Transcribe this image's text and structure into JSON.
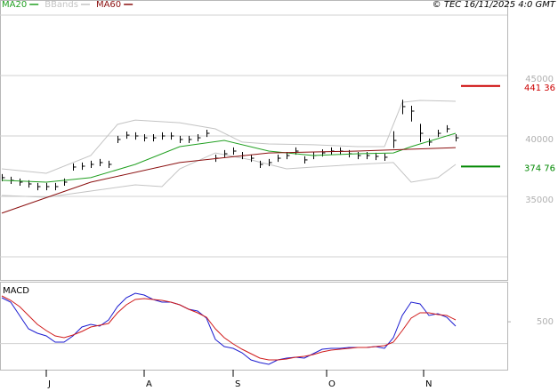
{
  "chart_data": [
    {
      "type": "ohlc",
      "source": "© TEC 16/11/2025 4:0 GMT",
      "xlim": [
        -0.2,
        56.8
      ],
      "xticks": [
        {
          "value": 5,
          "label": "J"
        },
        {
          "value": 16,
          "label": "A"
        },
        {
          "value": 26,
          "label": "S"
        },
        {
          "value": 36.5,
          "label": "O"
        },
        {
          "value": 47.4,
          "label": "N"
        }
      ],
      "ylim": [
        28090,
        51250
      ],
      "yticks": [
        35000,
        40000,
        45000
      ],
      "gridlines": [
        30000,
        35000,
        40000,
        45000,
        50000
      ],
      "bars": {
        "color": "#000000",
        "high": [
          36850,
          36630,
          36480,
          36330,
          36110,
          36110,
          36110,
          36480,
          37730,
          37800,
          37950,
          38100,
          37950,
          40010,
          40370,
          40300,
          40150,
          40150,
          40300,
          40300,
          40010,
          40010,
          40150,
          40520,
          38460,
          38830,
          39050,
          38680,
          38460,
          37950,
          38100,
          38460,
          38680,
          39050,
          38320,
          38680,
          38900,
          39050,
          39050,
          38830,
          38680,
          38680,
          38610,
          38540,
          40400,
          43000,
          42500,
          41000,
          39790,
          40520,
          40890,
          40150
        ],
        "low": [
          36250,
          36030,
          35880,
          35730,
          35510,
          35510,
          35510,
          35880,
          37130,
          37200,
          37350,
          37500,
          37350,
          39410,
          39770,
          39700,
          39550,
          39550,
          39700,
          39700,
          39410,
          39410,
          39550,
          39920,
          37860,
          38230,
          38450,
          38080,
          37860,
          37350,
          37500,
          37860,
          38080,
          38450,
          37720,
          38080,
          38300,
          38450,
          38450,
          38230,
          38080,
          38080,
          38010,
          37940,
          39000,
          41800,
          41200,
          39500,
          39190,
          39920,
          40290,
          39550
        ],
        "close": [
          36550,
          36330,
          36180,
          36030,
          35810,
          35810,
          35810,
          36180,
          37430,
          37500,
          37650,
          37800,
          37650,
          39710,
          40070,
          40000,
          39850,
          39850,
          40000,
          40000,
          39710,
          39710,
          39850,
          40220,
          38160,
          38530,
          38750,
          38380,
          38160,
          37650,
          37800,
          38160,
          38380,
          38750,
          38020,
          38380,
          38600,
          38750,
          38750,
          38530,
          38380,
          38380,
          38310,
          38240,
          39630,
          42430,
          42060,
          40220,
          39490,
          40220,
          40590,
          39850
        ]
      },
      "series": [
        {
          "name": "MA20",
          "color": "#22a022",
          "x": [
            0,
            5,
            10,
            15,
            20,
            25,
            30,
            35,
            40,
            44,
            46,
            51
          ],
          "values": [
            36330,
            36180,
            36550,
            37650,
            39120,
            39630,
            38750,
            38380,
            38530,
            38600,
            39120,
            40220
          ]
        },
        {
          "name": "BBands",
          "color": "#c4c4c4",
          "upper": {
            "x": [
              0,
              5,
              10,
              13,
              15,
              20,
              24,
              27,
              30,
              35,
              40,
              43,
              45,
              47,
              51
            ],
            "values": [
              37280,
              36910,
              38380,
              40960,
              41320,
              41100,
              40590,
              39490,
              39340,
              39270,
              39120,
              39120,
              42790,
              42940,
              42870
            ]
          },
          "lower": {
            "x": [
              0,
              5,
              10,
              15,
              18,
              20,
              24,
              28,
              32,
              35,
              40,
              44,
              46,
              49,
              51
            ],
            "values": [
              35080,
              34930,
              35440,
              35960,
              35810,
              37280,
              38600,
              38020,
              37280,
              37430,
              37650,
              37800,
              36180,
              36550,
              37650
            ]
          }
        },
        {
          "name": "MA60",
          "color": "#8b1010",
          "x": [
            0,
            10,
            20,
            30,
            40,
            51
          ],
          "values": [
            33610,
            36180,
            37800,
            38600,
            38750,
            39040
          ]
        }
      ],
      "levels": [
        {
          "value": 44136,
          "label": "441 36",
          "color": "#cc0000"
        },
        {
          "value": 37476,
          "label": "374 76",
          "color": "#008800"
        }
      ]
    },
    {
      "type": "line",
      "title": "MACD",
      "xlim": [
        -0.2,
        56.8
      ],
      "ylim": [
        -600,
        1420
      ],
      "yticks": [
        500
      ],
      "gridlines": [
        0
      ],
      "series": [
        {
          "color": "#1c1cd0",
          "values": [
            1052,
            950,
            644,
            338,
            236,
            175,
            32,
            32,
            175,
            379,
            440,
            400,
            542,
            848,
            1052,
            1154,
            1114,
            1012,
            950,
            950,
            889,
            787,
            746,
            583,
            94,
            -70,
            -110,
            -212,
            -376,
            -437,
            -478,
            -376,
            -335,
            -314,
            -335,
            -233,
            -131,
            -110,
            -110,
            -90,
            -90,
            -90,
            -70,
            -110,
            134,
            644,
            950,
            910,
            644,
            685,
            604,
            400
          ]
        },
        {
          "color": "#d01c1c",
          "values": [
            1093,
            991,
            848,
            644,
            440,
            298,
            175,
            134,
            196,
            277,
            379,
            420,
            461,
            706,
            889,
            1012,
            1032,
            1012,
            991,
            950,
            889,
            787,
            706,
            604,
            338,
            134,
            -8,
            -131,
            -233,
            -335,
            -376,
            -376,
            -355,
            -314,
            -294,
            -253,
            -192,
            -151,
            -131,
            -110,
            -90,
            -90,
            -70,
            -49,
            32,
            298,
            583,
            706,
            706,
            665,
            644,
            542
          ]
        }
      ]
    }
  ]
}
